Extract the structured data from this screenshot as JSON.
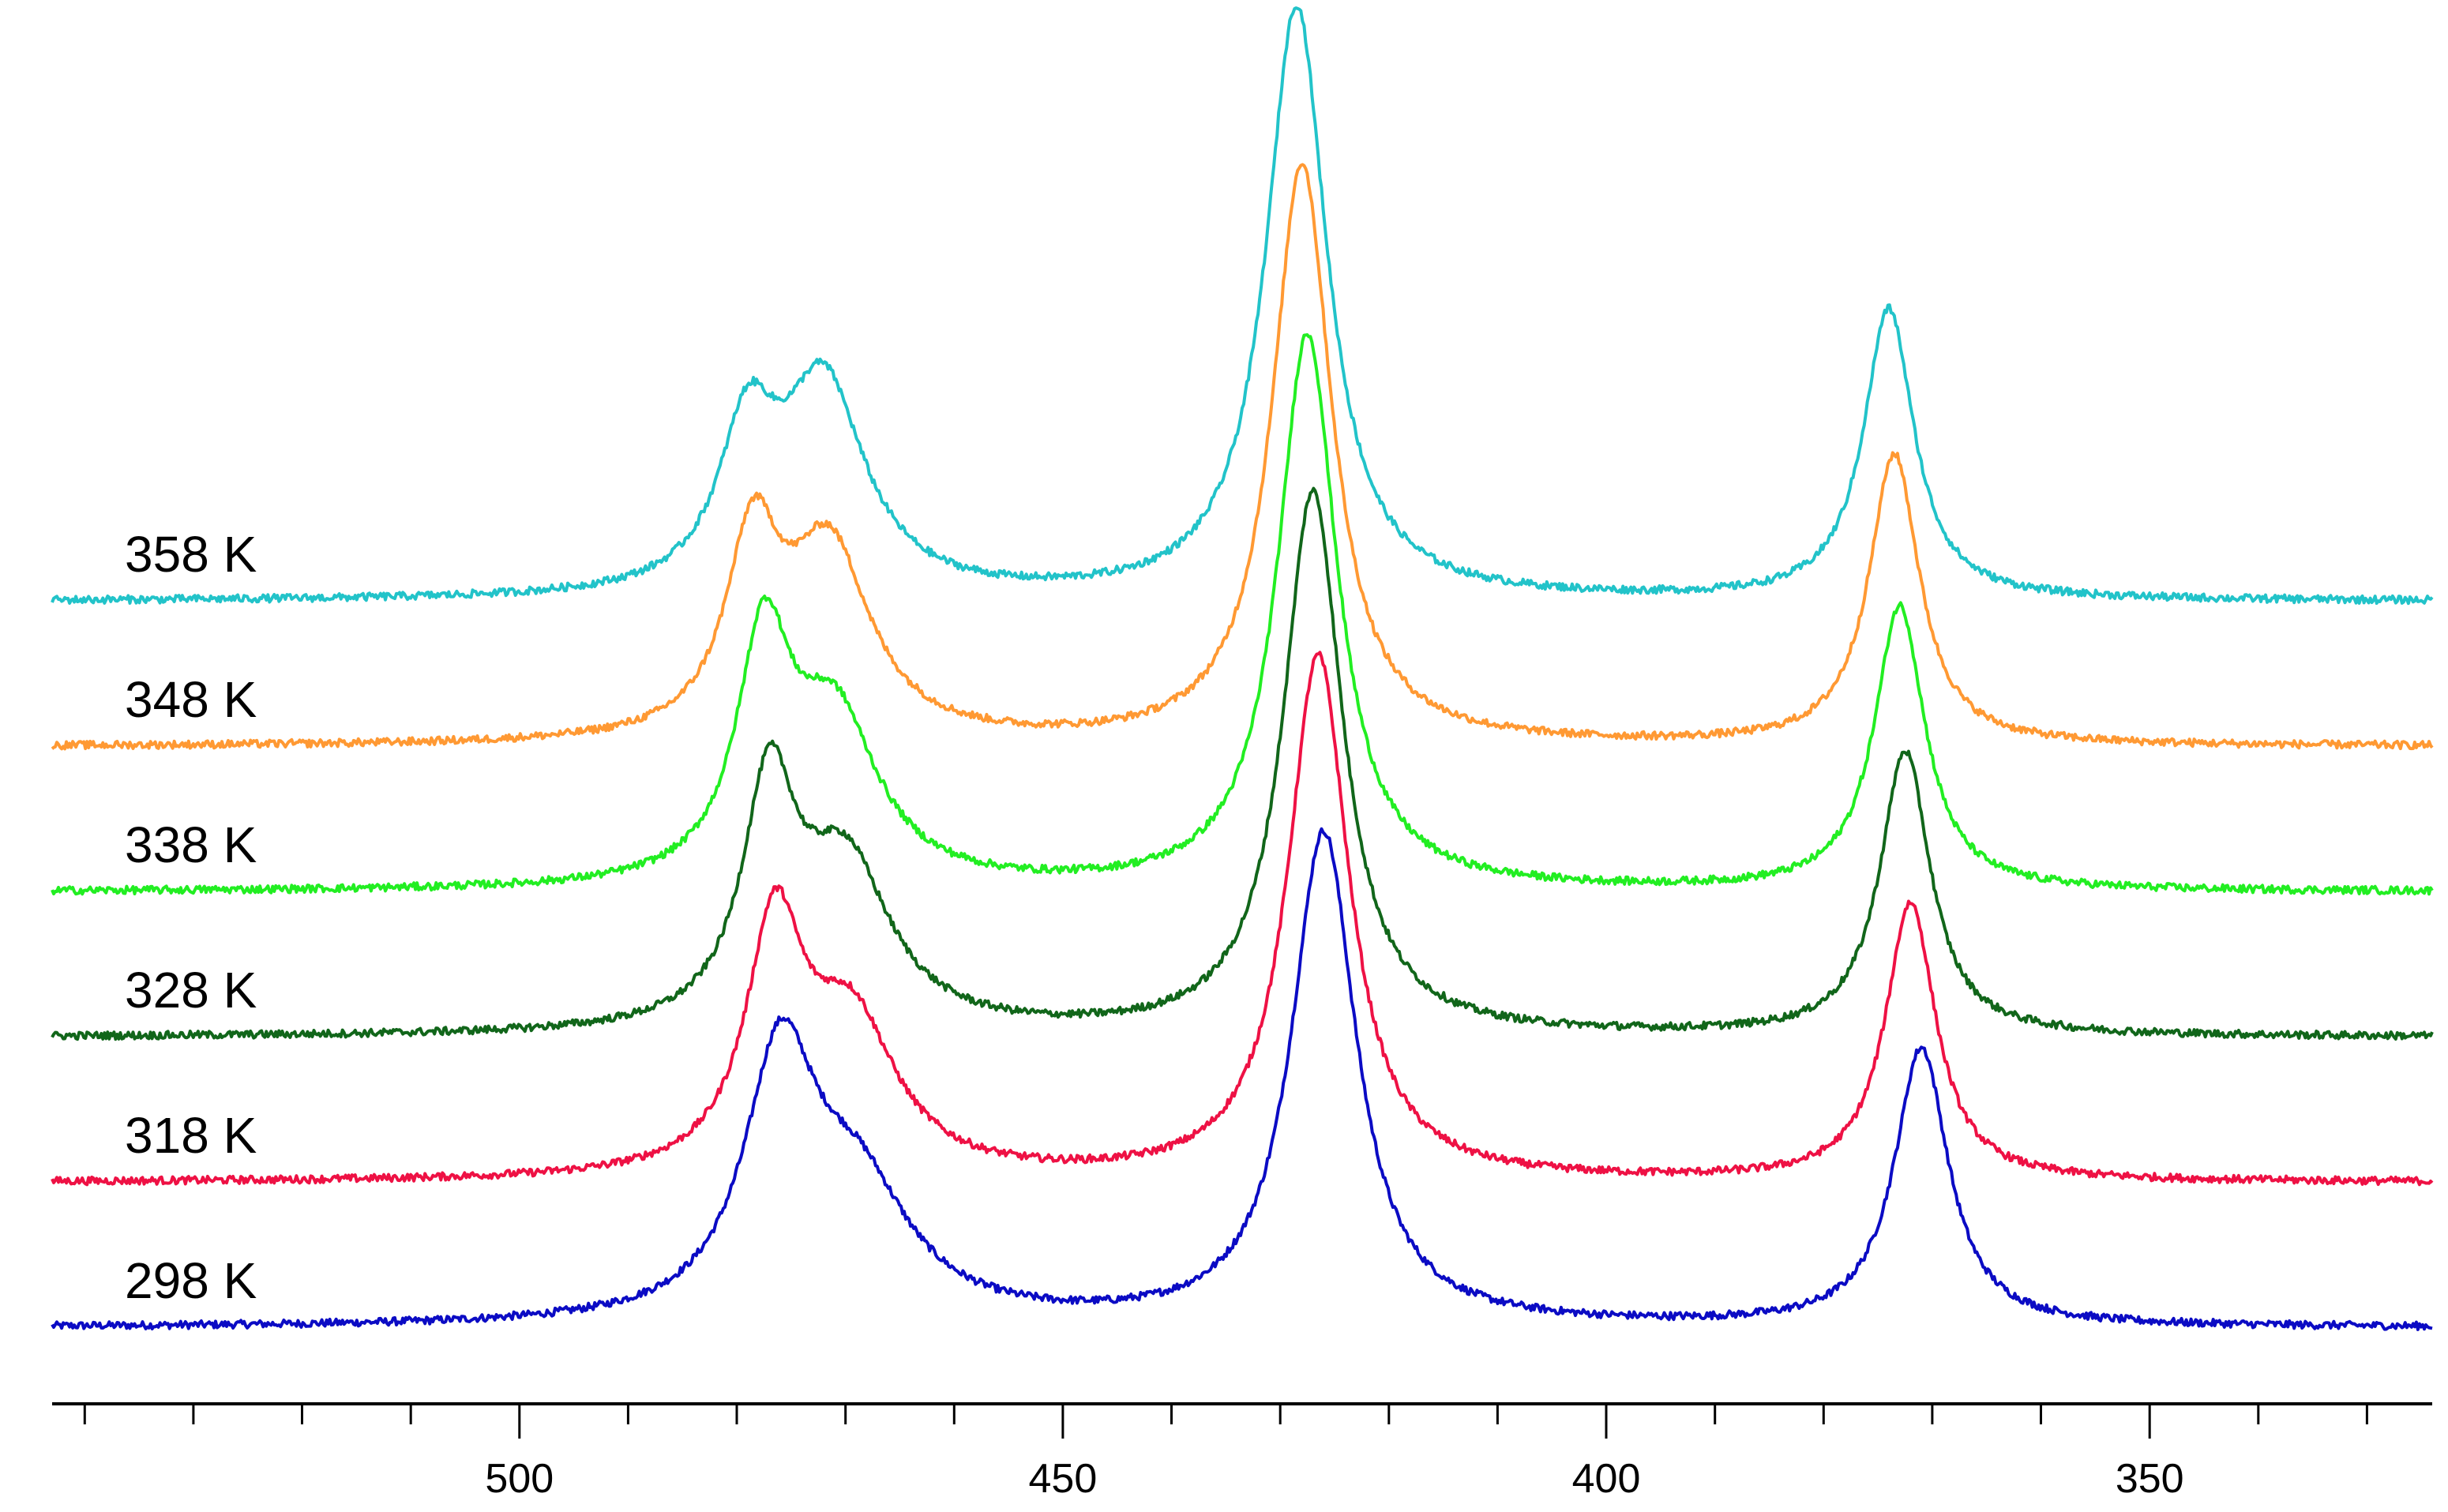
{
  "chart_data": {
    "type": "line",
    "title": "",
    "xlabel": "",
    "ylabel": "",
    "x_axis": {
      "min": 543,
      "max": 324,
      "reversed": true,
      "major_ticks": [
        500,
        450,
        400,
        350
      ],
      "tick_labels": [
        "500",
        "450",
        "400",
        "350"
      ],
      "minor_tick_step": 10
    },
    "grid": false,
    "legend": "none",
    "series": [
      {
        "name": "298 K",
        "color": "#0b0bc4",
        "offset": 0,
        "peaks": [
          {
            "center": 476.0,
            "height": 0.4,
            "width": 4.0
          },
          {
            "center": 469.0,
            "height": 0.2,
            "width": 6.0
          },
          {
            "center": 426.0,
            "height": 0.78,
            "width": 3.6
          },
          {
            "center": 371.0,
            "height": 0.44,
            "width": 3.0
          }
        ]
      },
      {
        "name": "318 K",
        "color": "#ee1144",
        "offset": 1,
        "peaks": [
          {
            "center": 476.5,
            "height": 0.38,
            "width": 3.2
          },
          {
            "center": 469.5,
            "height": 0.24,
            "width": 5.0
          },
          {
            "center": 426.5,
            "height": 0.83,
            "width": 3.4
          },
          {
            "center": 372.0,
            "height": 0.44,
            "width": 2.8
          }
        ]
      },
      {
        "name": "328 K",
        "color": "#11661a",
        "offset": 2,
        "peaks": [
          {
            "center": 477.0,
            "height": 0.37,
            "width": 3.0
          },
          {
            "center": 470.0,
            "height": 0.26,
            "width": 5.0
          },
          {
            "center": 427.0,
            "height": 0.86,
            "width": 3.3
          },
          {
            "center": 372.5,
            "height": 0.45,
            "width": 2.8
          }
        ]
      },
      {
        "name": "338 K",
        "color": "#22ee22",
        "offset": 3,
        "peaks": [
          {
            "center": 477.5,
            "height": 0.37,
            "width": 3.0
          },
          {
            "center": 471.0,
            "height": 0.26,
            "width": 4.8
          },
          {
            "center": 427.5,
            "height": 0.88,
            "width": 3.3
          },
          {
            "center": 373.0,
            "height": 0.45,
            "width": 2.8
          }
        ]
      },
      {
        "name": "348 K",
        "color": "#ff9933",
        "offset": 4,
        "peaks": [
          {
            "center": 478.5,
            "height": 0.3,
            "width": 3.0
          },
          {
            "center": 471.5,
            "height": 0.3,
            "width": 4.6
          },
          {
            "center": 428.0,
            "height": 0.92,
            "width": 3.3
          },
          {
            "center": 373.5,
            "height": 0.46,
            "width": 2.8
          }
        ]
      },
      {
        "name": "358 K",
        "color": "#22c3c9",
        "offset": 5,
        "peaks": [
          {
            "center": 479.0,
            "height": 0.24,
            "width": 3.2
          },
          {
            "center": 472.0,
            "height": 0.33,
            "width": 4.6
          },
          {
            "center": 428.5,
            "height": 0.94,
            "width": 3.4
          },
          {
            "center": 374.0,
            "height": 0.46,
            "width": 2.8
          }
        ]
      }
    ]
  }
}
